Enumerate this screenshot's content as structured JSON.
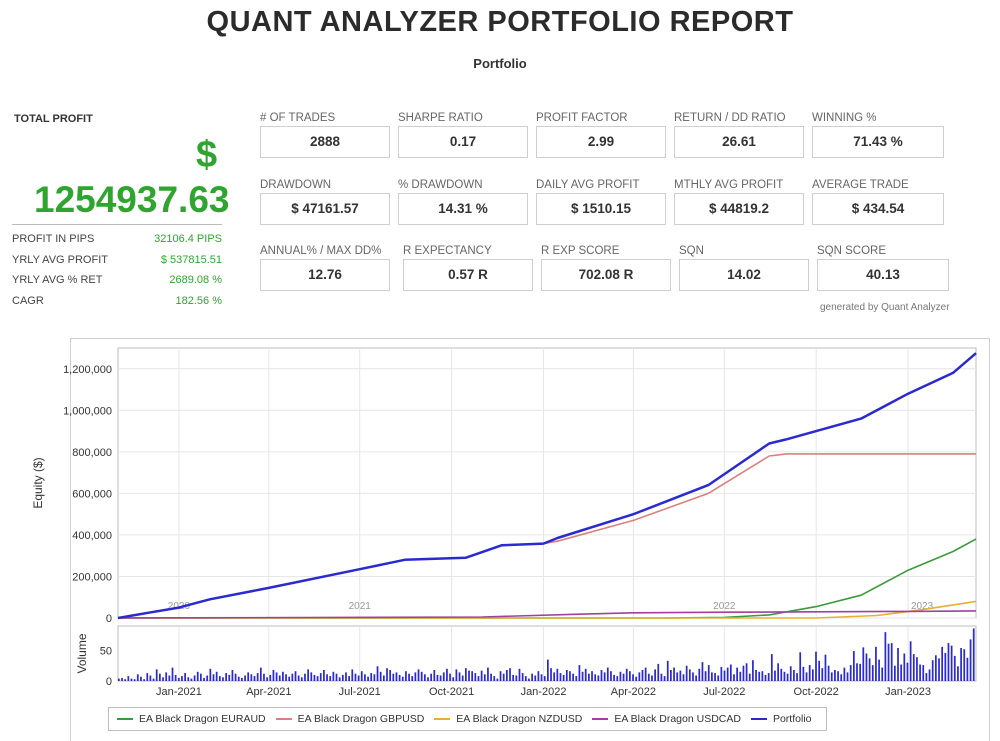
{
  "report": {
    "title": "QUANT ANALYZER PORTFOLIO REPORT",
    "subtitle": "Portfolio",
    "credit": "generated by Quant Analyzer"
  },
  "summary": {
    "total_profit_label": "TOTAL PROFIT",
    "currency_symbol": "$",
    "total_profit": "1254937.63",
    "stats": [
      {
        "label": "PROFIT IN PIPS",
        "value": "32106.4 PIPS"
      },
      {
        "label": "YRLY AVG PROFIT",
        "value": "$ 537815.51"
      },
      {
        "label": "YRLY AVG % RET",
        "value": "2689.08 %"
      },
      {
        "label": "CAGR",
        "value": "182.56 %"
      }
    ]
  },
  "metrics": [
    {
      "label": "# OF TRADES",
      "value": "2888"
    },
    {
      "label": "SHARPE RATIO",
      "value": "0.17"
    },
    {
      "label": "PROFIT FACTOR",
      "value": "2.99"
    },
    {
      "label": "RETURN / DD RATIO",
      "value": "26.61"
    },
    {
      "label": "WINNING %",
      "value": "71.43 %"
    },
    {
      "label": "DRAWDOWN",
      "value": "$ 47161.57"
    },
    {
      "label": "% DRAWDOWN",
      "value": "14.31 %"
    },
    {
      "label": "DAILY AVG PROFIT",
      "value": "$ 1510.15"
    },
    {
      "label": "MTHLY AVG PROFIT",
      "value": "$ 44819.2"
    },
    {
      "label": "AVERAGE TRADE",
      "value": "$ 434.54"
    },
    {
      "label": "ANNUAL% / MAX DD%",
      "value": "12.76"
    },
    {
      "label": "R EXPECTANCY",
      "value": "0.57 R"
    },
    {
      "label": "R EXP SCORE",
      "value": "702.08 R"
    },
    {
      "label": "SQN",
      "value": "14.02"
    },
    {
      "label": "SQN SCORE",
      "value": "40.13"
    }
  ],
  "colors": {
    "green_text": "#2fa52f",
    "euraud": "#3c9a3c",
    "gbpusd": "#d9817c",
    "nzdusd": "#e8b030",
    "usdcad": "#a040a0",
    "portfolio": "#2a2ad0",
    "volume": "#2a2ad0"
  },
  "chart_data": {
    "type": "line",
    "ylabel": "Equity ($)",
    "ylim": [
      0,
      1300000
    ],
    "yticks": [
      0,
      200000,
      400000,
      600000,
      800000,
      1000000,
      1200000
    ],
    "ytick_labels": [
      "0",
      "200,000",
      "400,000",
      "600,000",
      "800,000",
      "1,000,000",
      "1,200,000"
    ],
    "x_range": [
      "2020-11-01",
      "2023-03-10"
    ],
    "xticks": [
      {
        "date": "2021-01-01",
        "label": "Jan-2021"
      },
      {
        "date": "2021-04-01",
        "label": "Apr-2021"
      },
      {
        "date": "2021-07-01",
        "label": "Jul-2021"
      },
      {
        "date": "2021-10-01",
        "label": "Oct-2021"
      },
      {
        "date": "2022-01-01",
        "label": "Jan-2022"
      },
      {
        "date": "2022-04-01",
        "label": "Apr-2022"
      },
      {
        "date": "2022-07-01",
        "label": "Jul-2022"
      },
      {
        "date": "2022-10-01",
        "label": "Oct-2022"
      },
      {
        "date": "2023-01-01",
        "label": "Jan-2023"
      }
    ],
    "year_markers": [
      {
        "date": "2021-01-01",
        "label": "2020"
      },
      {
        "date": "2021-07-01",
        "label": "2021"
      },
      {
        "date": "2022-07-01",
        "label": "2022"
      },
      {
        "date": "2023-01-15",
        "label": "2023"
      }
    ],
    "grid": true,
    "legend_position": "bottom",
    "series": [
      {
        "name": "EA Black Dragon EURAUD",
        "color_key": "euraud",
        "x": [
          "2020-11-01",
          "2022-05-01",
          "2022-07-01",
          "2022-08-15",
          "2022-10-01",
          "2022-11-15",
          "2023-01-01",
          "2023-02-15",
          "2023-03-10"
        ],
        "y": [
          0,
          0,
          3000,
          15000,
          55000,
          110000,
          230000,
          320000,
          380000
        ]
      },
      {
        "name": "EA Black Dragon GBPUSD",
        "color_key": "gbpusd",
        "x": [
          "2020-11-01",
          "2020-12-01",
          "2021-01-01",
          "2021-02-01",
          "2021-04-01",
          "2021-07-01",
          "2021-08-15",
          "2021-10-15",
          "2021-11-20",
          "2022-01-01",
          "2022-01-15",
          "2022-04-01",
          "2022-06-15",
          "2022-08-15",
          "2022-09-01",
          "2023-03-10"
        ],
        "y": [
          0,
          25000,
          50000,
          90000,
          145000,
          235000,
          280000,
          290000,
          350000,
          358000,
          370000,
          470000,
          600000,
          780000,
          790000,
          790000
        ]
      },
      {
        "name": "EA Black Dragon NZDUSD",
        "color_key": "nzdusd",
        "x": [
          "2020-11-01",
          "2022-10-01",
          "2022-12-01",
          "2023-01-15",
          "2023-03-10"
        ],
        "y": [
          0,
          0,
          12000,
          40000,
          80000
        ]
      },
      {
        "name": "EA Black Dragon USDCAD",
        "color_key": "usdcad",
        "x": [
          "2020-11-01",
          "2021-11-01",
          "2022-02-01",
          "2022-04-01",
          "2022-07-01",
          "2022-10-01",
          "2023-01-01",
          "2023-03-10"
        ],
        "y": [
          0,
          5000,
          18000,
          25000,
          28000,
          30000,
          32000,
          34000
        ]
      },
      {
        "name": "Portfolio",
        "color_key": "portfolio",
        "x": [
          "2020-11-01",
          "2020-12-01",
          "2021-01-01",
          "2021-02-01",
          "2021-04-01",
          "2021-07-01",
          "2021-08-15",
          "2021-10-15",
          "2021-11-20",
          "2022-01-01",
          "2022-01-15",
          "2022-04-01",
          "2022-06-15",
          "2022-08-15",
          "2022-09-01",
          "2022-10-01",
          "2022-11-15",
          "2023-01-01",
          "2023-02-15",
          "2023-03-10"
        ],
        "y": [
          0,
          25000,
          50000,
          90000,
          145000,
          235000,
          280000,
          290000,
          350000,
          358000,
          385000,
          500000,
          640000,
          840000,
          860000,
          900000,
          960000,
          1080000,
          1180000,
          1275000
        ]
      }
    ],
    "volume": {
      "ylabel": "Volume",
      "ylim": [
        0,
        90
      ],
      "yticks": [
        0,
        50
      ],
      "values": [
        4,
        5,
        3,
        8,
        4,
        3,
        11,
        7,
        3,
        13,
        9,
        4,
        19,
        12,
        6,
        14,
        9,
        22,
        10,
        5,
        8,
        13,
        6,
        4,
        9,
        15,
        12,
        5,
        9,
        20,
        11,
        15,
        8,
        6,
        13,
        10,
        18,
        12,
        7,
        5,
        9,
        14,
        11,
        8,
        13,
        22,
        12,
        6,
        10,
        18,
        14,
        9,
        15,
        11,
        7,
        12,
        16,
        9,
        6,
        12,
        19,
        14,
        10,
        8,
        13,
        18,
        11,
        8,
        15,
        12,
        6,
        10,
        14,
        8,
        19,
        12,
        9,
        16,
        11,
        7,
        13,
        11,
        24,
        15,
        9,
        21,
        18,
        12,
        14,
        10,
        7,
        16,
        12,
        8,
        14,
        19,
        15,
        11,
        6,
        12,
        18,
        10,
        9,
        14,
        20,
        12,
        6,
        19,
        14,
        9,
        21,
        17,
        16,
        13,
        8,
        17,
        11,
        22,
        12,
        8,
        4,
        16,
        12,
        18,
        21,
        10,
        9,
        20,
        13,
        8,
        4,
        12,
        9,
        16,
        11,
        8,
        35,
        21,
        14,
        20,
        13,
        10,
        18,
        16,
        12,
        8,
        26,
        15,
        20,
        12,
        16,
        11,
        9,
        18,
        14,
        22,
        16,
        10,
        8,
        15,
        12,
        20,
        16,
        11,
        7,
        14,
        18,
        22,
        12,
        9,
        19,
        28,
        12,
        8,
        33,
        18,
        22,
        14,
        17,
        11,
        25,
        19,
        14,
        9,
        20,
        31,
        16,
        26,
        14,
        13,
        9,
        23,
        17,
        22,
        27,
        11,
        22,
        15,
        25,
        29,
        12,
        34,
        18,
        15,
        16,
        10,
        13,
        44,
        17,
        29,
        20,
        15,
        12,
        24,
        18,
        13,
        47,
        23,
        14,
        26,
        19,
        48,
        33,
        21,
        43,
        25,
        14,
        18,
        16,
        11,
        22,
        14,
        26,
        49,
        29,
        28,
        55,
        45,
        37,
        26,
        56,
        35,
        22,
        80,
        61,
        62,
        25,
        54,
        27,
        45,
        30,
        65,
        44,
        39,
        27,
        26,
        13,
        19,
        34,
        42,
        37,
        56,
        46,
        62,
        58,
        41,
        24,
        54,
        52,
        38,
        68,
        86
      ]
    }
  }
}
